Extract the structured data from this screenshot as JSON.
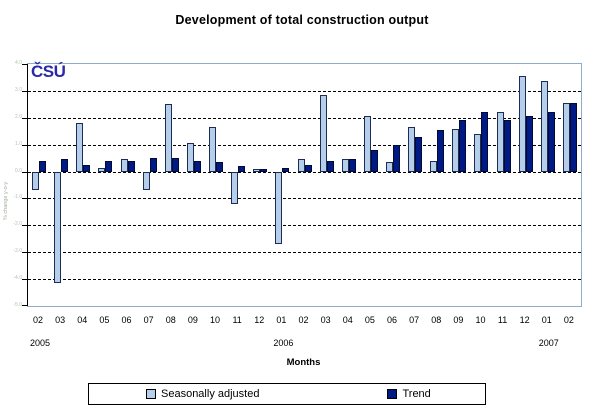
{
  "logo_text": "ČSÚ",
  "chart_data": {
    "type": "bar",
    "title": "Development of total construction output",
    "xlabel": "Months",
    "ylabel": "% change y-o-y",
    "ylim": [
      -5,
      4
    ],
    "ytick_step": 1,
    "ytick_labels": [
      "4.0",
      "3.0",
      "2.0",
      "1.0",
      "0.0",
      "-1.0",
      "-2.0",
      "-3.0",
      "-4.0",
      "-5.0"
    ],
    "grid": "horizontal-dashed-black",
    "legend_position": "bottom",
    "categories": [
      "02",
      "03",
      "04",
      "05",
      "06",
      "07",
      "08",
      "09",
      "10",
      "11",
      "12",
      "01",
      "02",
      "03",
      "04",
      "05",
      "06",
      "07",
      "08",
      "09",
      "10",
      "11",
      "12",
      "01",
      "02"
    ],
    "year_breaks": [
      {
        "index": 0,
        "label": "2005"
      },
      {
        "index": 11,
        "label": "2006"
      },
      {
        "index": 23,
        "label": "2007"
      }
    ],
    "series": [
      {
        "name": "Seasonally adjusted",
        "color": "#b5cfeb",
        "values": [
          -0.7,
          -4.15,
          1.8,
          0.15,
          0.45,
          -0.7,
          2.5,
          1.05,
          1.65,
          -1.2,
          0.1,
          -2.7,
          0.45,
          2.85,
          0.45,
          2.05,
          0.35,
          1.65,
          0.4,
          1.6,
          1.4,
          2.2,
          3.55,
          3.35,
          2.55
        ]
      },
      {
        "name": "Trend",
        "color": "#001a85",
        "values": [
          0.4,
          0.45,
          0.25,
          0.4,
          0.4,
          0.5,
          0.5,
          0.4,
          0.35,
          0.2,
          0.1,
          0.15,
          0.25,
          0.4,
          0.45,
          0.8,
          1.0,
          1.3,
          1.55,
          1.9,
          2.2,
          1.9,
          2.05,
          2.2,
          2.55
        ]
      }
    ],
    "colors": {
      "plot_border": "#92abc9",
      "axis": "#000000",
      "gridline": "#000000",
      "ytick_label": "#b7c2ad",
      "logo": "#2a2aa8"
    }
  }
}
